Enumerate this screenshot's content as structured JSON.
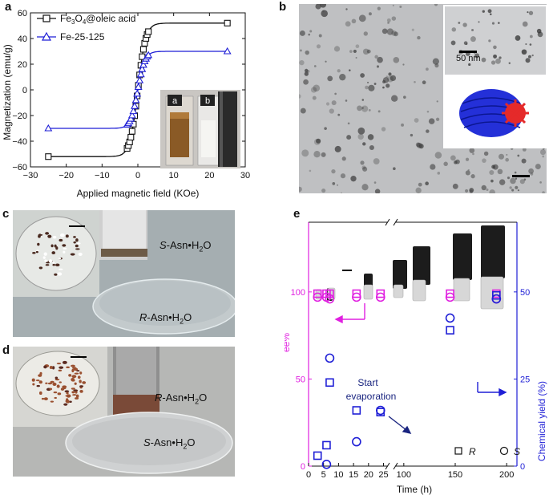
{
  "panels": {
    "a": "a",
    "b": "b",
    "c": "c",
    "d": "d",
    "e": "e"
  },
  "panel_a": {
    "legend_series1_prefix": "Fe",
    "legend_series1_sub1": "3",
    "legend_series1_mid": "O",
    "legend_series1_sub2": "4",
    "legend_series1_suffix": "@oleic acid",
    "legend_series2": "Fe-25-125",
    "ylabel": "Magnetization (emu/g)",
    "xlabel": "Applied magnetic field (KOe)",
    "inset_tags": [
      "a",
      "b"
    ],
    "x_ticks": [
      "−30",
      "−20",
      "−10",
      "0",
      "10",
      "20",
      "30"
    ],
    "y_ticks": [
      "60",
      "40",
      "20",
      "0",
      "−20",
      "−40",
      "−60"
    ]
  },
  "panel_b": {
    "inset_scale": "50 nm"
  },
  "panel_c": {
    "upper_enantiomer": "S",
    "upper_rest": "-Asn•H",
    "upper_sub": "2",
    "upper_tail": "O",
    "lower_enantiomer": "R",
    "lower_rest": "-Asn•H",
    "lower_sub": "2",
    "lower_tail": "O"
  },
  "panel_d": {
    "upper_enantiomer": "R",
    "upper_rest": "-Asn•H",
    "upper_sub": "2",
    "upper_tail": "O",
    "lower_enantiomer": "S",
    "lower_rest": "-Asn•H",
    "lower_sub": "2",
    "lower_tail": "O"
  },
  "panel_e": {
    "ylabel_left": "ee%",
    "ylabel_right": "Chemical yield (%)",
    "xlabel": "Time (h)",
    "annotation": [
      "Start",
      "evaporation"
    ],
    "legend_R": "R",
    "legend_S": "S",
    "x_ticks": [
      "0",
      "5",
      "10",
      "15",
      "20",
      "25",
      "100",
      "150",
      "200"
    ],
    "y_left_ticks": [
      "0",
      "50",
      "100"
    ],
    "y_right_ticks": [
      "0",
      "25",
      "50"
    ]
  },
  "colors": {
    "black": "#111111",
    "blue": "#1f1fd6",
    "magenta": "#e020e0"
  },
  "chart_data": [
    {
      "type": "line",
      "panel": "a",
      "xlabel": "Applied magnetic field (KOe)",
      "ylabel": "Magnetization (emu/g)",
      "xlim": [
        -30,
        30
      ],
      "ylim": [
        -60,
        60
      ],
      "series": [
        {
          "name": "Fe3O4@oleic acid",
          "marker": "square",
          "color": "#111111",
          "Ms": 52,
          "H0": 2.2,
          "x": [
            -25,
            -20,
            -15,
            -10,
            -6,
            -4,
            -2,
            -1,
            0,
            1,
            2,
            4,
            6,
            10,
            15,
            20,
            25
          ],
          "y": [
            -52,
            -51.5,
            -50.8,
            -49.5,
            -46.5,
            -42,
            -29,
            -16,
            0,
            16,
            29,
            42,
            46.5,
            49.5,
            50.8,
            51.5,
            52
          ]
        },
        {
          "name": "Fe-25-125",
          "marker": "triangle",
          "color": "#1f1fd6",
          "Ms": 30,
          "H0": 2.0,
          "x": [
            -25,
            -20,
            -15,
            -10,
            -6,
            -4,
            -2,
            -1,
            0,
            1,
            2,
            4,
            6,
            10,
            15,
            20,
            25
          ],
          "y": [
            -30,
            -29.7,
            -29.2,
            -28.3,
            -26.5,
            -24,
            -17,
            -9.5,
            0,
            9.5,
            17,
            24,
            26.5,
            28.3,
            29.2,
            29.7,
            30
          ]
        }
      ]
    },
    {
      "type": "scatter",
      "panel": "e",
      "xlabel": "Time (h)",
      "ylabel_left": "ee%",
      "ylabel_right": "Chemical yield (%)",
      "x_axis_break": [
        27,
        90
      ],
      "ylim_left": [
        0,
        140
      ],
      "ylim_right": [
        0,
        70
      ],
      "series": [
        {
          "name": "R ee",
          "marker": "square",
          "axis": "left",
          "color": "#e020e0",
          "x": [
            3,
            6,
            16,
            24,
            28,
            145,
            190
          ],
          "y": [
            99,
            99,
            99,
            99,
            99,
            99,
            99
          ]
        },
        {
          "name": "S ee",
          "marker": "circle",
          "axis": "left",
          "color": "#e020e0",
          "x": [
            3,
            6,
            16,
            24,
            28,
            145,
            190
          ],
          "y": [
            97,
            97,
            97,
            97,
            96,
            97,
            96
          ]
        },
        {
          "name": "R yield",
          "marker": "square",
          "axis": "right",
          "color": "#1f1fd6",
          "x": [
            3,
            6,
            16,
            24,
            28,
            145,
            190
          ],
          "y": [
            3,
            6,
            16,
            15.5,
            24,
            39,
            49
          ]
        },
        {
          "name": "S yield",
          "marker": "circle",
          "axis": "right",
          "color": "#1f1fd6",
          "x": [
            6,
            16,
            24,
            28,
            145,
            190
          ],
          "y": [
            0.5,
            7,
            16,
            31,
            42.5,
            48
          ]
        }
      ]
    }
  ]
}
